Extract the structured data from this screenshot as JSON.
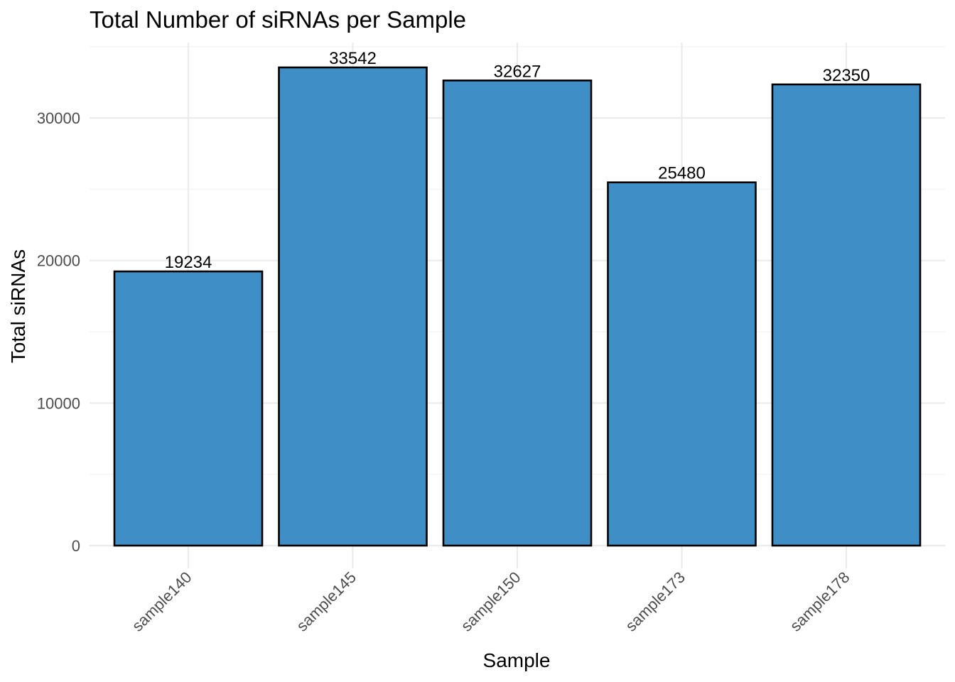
{
  "chart_data": {
    "type": "bar",
    "title": "Total Number of siRNAs per Sample",
    "xlabel": "Sample",
    "ylabel": "Total siRNAs",
    "categories": [
      "sample140",
      "sample145",
      "sample150",
      "sample173",
      "sample178"
    ],
    "values": [
      19234,
      33542,
      32627,
      25480,
      32350
    ],
    "data_labels": [
      "19234",
      "33542",
      "32627",
      "25480",
      "32350"
    ],
    "y_ticks": [
      0,
      10000,
      20000,
      30000
    ],
    "y_tick_labels": [
      "0",
      "10000",
      "20000",
      "30000"
    ],
    "ylim": [
      0,
      35000
    ],
    "grid": true,
    "bar_color": "#3f8ec5",
    "bar_outline": "#000000"
  }
}
